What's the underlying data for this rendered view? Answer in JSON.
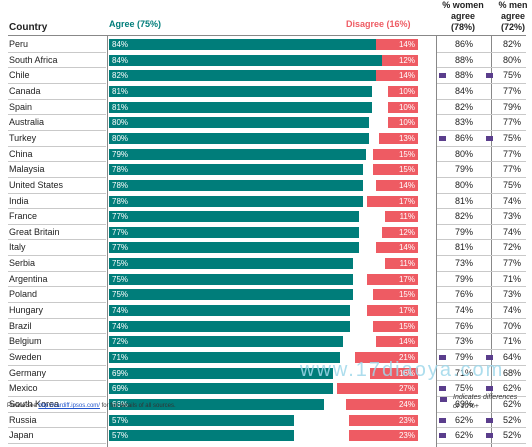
{
  "chart_data": {
    "type": "bar",
    "header": {
      "country": "Country",
      "agree": "Agree (75%)",
      "disagree": "Disagree  (16%)",
      "women": [
        "% women",
        "agree",
        "(78%)"
      ],
      "men": [
        "% men",
        "agree",
        "(72%)"
      ]
    },
    "categories": [
      "Peru",
      "South Africa",
      "Chile",
      "Canada",
      "Spain",
      "Australia",
      "Turkey",
      "China",
      "Malaysia",
      "United States",
      "India",
      "France",
      "Great Britain",
      "Italy",
      "Serbia",
      "Argentina",
      "Poland",
      "Hungary",
      "Brazil",
      "Belgium",
      "Sweden",
      "Germany",
      "Mexico",
      "South Korea",
      "Russia",
      "Japan"
    ],
    "series": [
      {
        "name": "Agree (75%)",
        "color": "#007d7a",
        "values": [
          84,
          84,
          82,
          81,
          81,
          80,
          80,
          79,
          78,
          78,
          78,
          77,
          77,
          77,
          75,
          75,
          75,
          74,
          74,
          72,
          71,
          69,
          69,
          66,
          57,
          57
        ]
      },
      {
        "name": "Disagree  (16%)",
        "color": "#ee5b63",
        "values": [
          14,
          12,
          14,
          10,
          10,
          10,
          13,
          15,
          15,
          14,
          17,
          11,
          12,
          14,
          11,
          17,
          15,
          17,
          15,
          14,
          21,
          16,
          27,
          24,
          23,
          23
        ]
      }
    ],
    "women_agree": [
      86,
      88,
      88,
      84,
      82,
      83,
      86,
      80,
      79,
      80,
      81,
      82,
      79,
      81,
      73,
      79,
      76,
      74,
      76,
      73,
      79,
      71,
      75,
      69,
      62,
      62
    ],
    "men_agree": [
      82,
      80,
      75,
      77,
      79,
      77,
      75,
      77,
      77,
      75,
      74,
      73,
      74,
      72,
      77,
      71,
      73,
      74,
      70,
      71,
      64,
      68,
      62,
      62,
      52,
      52
    ],
    "women_marked": [
      false,
      false,
      true,
      false,
      false,
      false,
      true,
      false,
      false,
      false,
      false,
      false,
      false,
      false,
      false,
      false,
      false,
      false,
      false,
      false,
      true,
      false,
      true,
      false,
      true,
      true
    ],
    "men_marked": [
      false,
      false,
      true,
      false,
      false,
      false,
      true,
      false,
      false,
      false,
      false,
      false,
      false,
      false,
      false,
      false,
      false,
      false,
      false,
      false,
      true,
      false,
      true,
      false,
      true,
      true
    ],
    "marker_color": "#5a3d8c",
    "legend_note": [
      "Indicates differences",
      "of 10%+"
    ],
    "footnote": {
      "prefix": "Please see ",
      "link": "http://cardiff.ipsos.com/",
      "suffix": " for full details of all sources."
    },
    "watermark": "www.17diaoya.com"
  }
}
